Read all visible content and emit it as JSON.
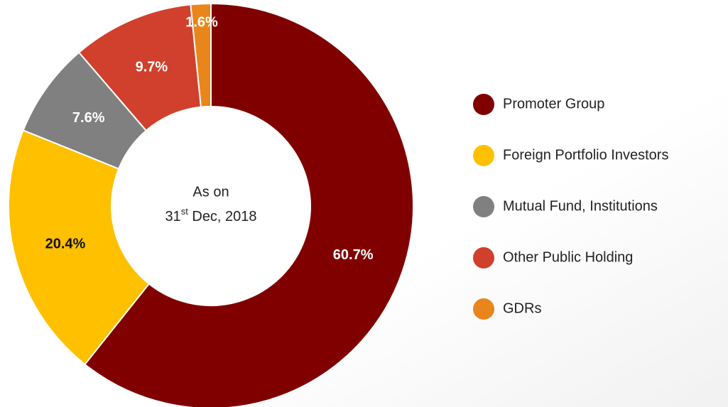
{
  "chart_data": {
    "type": "donut",
    "categories": [
      "Promoter Group",
      "Foreign Portfolio Investors",
      "Mutual Fund, Institutions",
      "Other Public Holding",
      "GDRs"
    ],
    "values": [
      60.7,
      20.4,
      7.6,
      9.7,
      1.6
    ],
    "value_labels": [
      "60.7%",
      "20.4%",
      "7.6%",
      "9.7%",
      "1.6%"
    ],
    "colors": [
      "#800000",
      "#ffc000",
      "#808080",
      "#d0402c",
      "#e8861c"
    ],
    "center_text": [
      "As on",
      "31",
      "st",
      " Dec, 2018"
    ],
    "legend": "right"
  }
}
